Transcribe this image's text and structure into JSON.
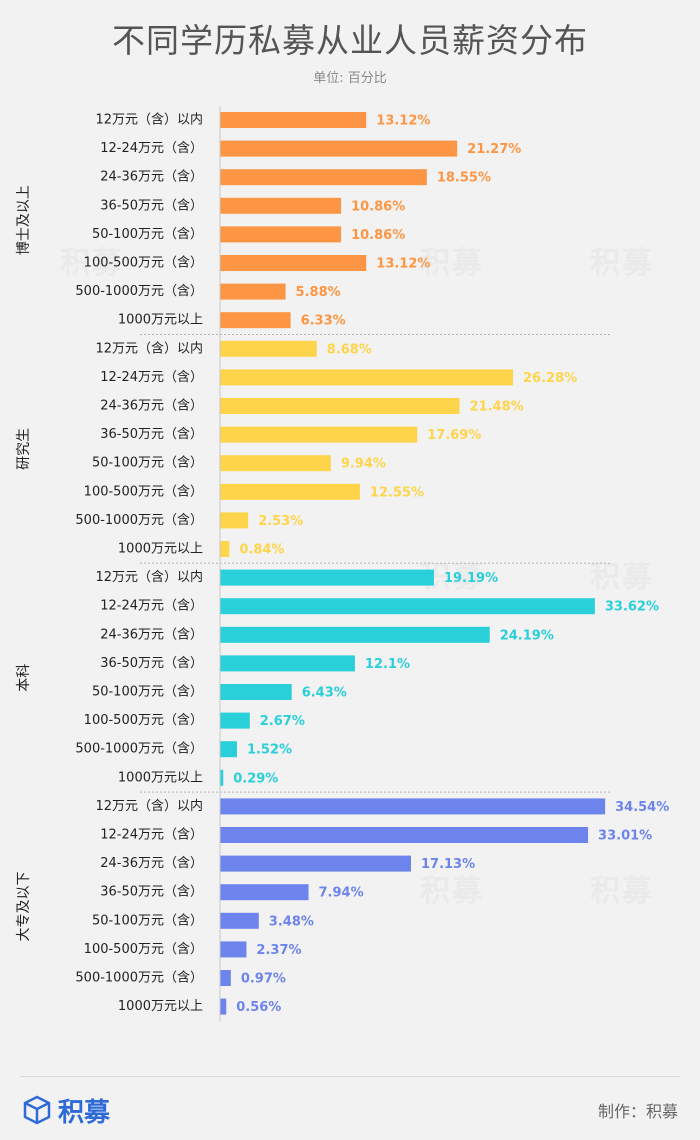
{
  "title": "不同学历私募从业人员薪资分布",
  "subtitle": "单位: 百分比",
  "footer": {
    "brand": "积募",
    "maker": "制作：积募"
  },
  "watermark": "积募",
  "colors": {
    "博士及以上": "#fd9644",
    "研究生": "#fed54a",
    "本科": "#29cfd9",
    "大专及以下": "#6d84ec"
  },
  "chart_data": {
    "type": "bar",
    "orientation": "horizontal",
    "title": "不同学历私募从业人员薪资分布",
    "unit": "单位: 百分比",
    "categories": [
      "12万元（含）以内",
      "12-24万元（含）",
      "24-36万元（含）",
      "36-50万元（含）",
      "50-100万元（含）",
      "100-500万元（含）",
      "500-1000万元（含）",
      "1000万元以上"
    ],
    "groups": [
      {
        "name": "博士及以上",
        "values": [
          13.12,
          21.27,
          18.55,
          10.86,
          10.86,
          13.12,
          5.88,
          6.33
        ]
      },
      {
        "name": "研究生",
        "values": [
          8.68,
          26.28,
          21.48,
          17.69,
          9.94,
          12.55,
          2.53,
          0.84
        ]
      },
      {
        "name": "本科",
        "values": [
          19.19,
          33.62,
          24.19,
          12.1,
          6.43,
          2.67,
          1.52,
          0.29
        ]
      },
      {
        "name": "大专及以下",
        "values": [
          34.54,
          33.01,
          17.13,
          7.94,
          3.48,
          2.37,
          0.97,
          0.56
        ]
      }
    ],
    "value_labels": [
      [
        "13.12%",
        "21.27%",
        "18.55%",
        "10.86%",
        "10.86%",
        "13.12%",
        "5.88%",
        "6.33%"
      ],
      [
        "8.68%",
        "26.28%",
        "21.48%",
        "17.69%",
        "9.94%",
        "12.55%",
        "2.53%",
        "0.84%"
      ],
      [
        "19.19%",
        "33.62%",
        "24.19%",
        "12.1%",
        "6.43%",
        "2.67%",
        "1.52%",
        "0.29%"
      ],
      [
        "34.54%",
        "33.01%",
        "17.13%",
        "7.94%",
        "3.48%",
        "2.37%",
        "0.97%",
        "0.56%"
      ]
    ]
  }
}
